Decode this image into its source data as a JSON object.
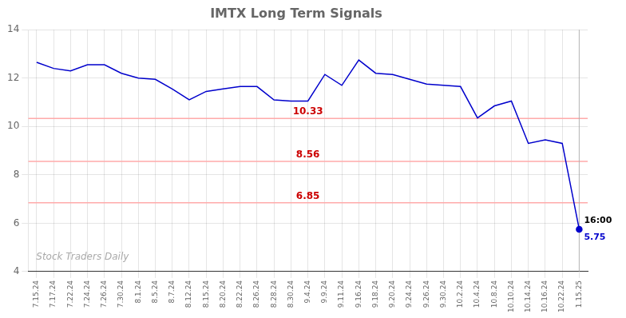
{
  "chart_data": {
    "type": "line",
    "title": "IMTX Long Term Signals",
    "categories": [
      "7.15.24",
      "7.17.24",
      "7.22.24",
      "7.24.24",
      "7.26.24",
      "7.30.24",
      "8.1.24",
      "8.5.24",
      "8.7.24",
      "8.12.24",
      "8.15.24",
      "8.20.24",
      "8.22.24",
      "8.26.24",
      "8.28.24",
      "8.30.24",
      "9.4.24",
      "9.9.24",
      "9.11.24",
      "9.16.24",
      "9.18.24",
      "9.20.24",
      "9.24.24",
      "9.26.24",
      "9.30.24",
      "10.2.24",
      "10.4.24",
      "10.8.24",
      "10.10.24",
      "10.14.24",
      "10.16.24",
      "10.22.24",
      "1.15.25"
    ],
    "values": [
      12.65,
      12.4,
      12.3,
      12.55,
      12.55,
      12.2,
      12.0,
      11.95,
      11.55,
      11.1,
      11.45,
      11.55,
      11.65,
      11.65,
      11.1,
      11.05,
      11.05,
      12.15,
      11.7,
      12.75,
      12.2,
      12.15,
      11.95,
      11.75,
      11.7,
      11.65,
      10.35,
      10.85,
      11.05,
      9.3,
      9.45,
      9.3,
      5.75
    ],
    "color": "#0000cc",
    "ylim": [
      4,
      14
    ],
    "yticks": [
      4,
      6,
      8,
      10,
      12,
      14
    ],
    "grid": true,
    "horizontal_lines": [
      {
        "value": 10.33,
        "label": "10.33",
        "color": "#ffaaaa",
        "label_color": "#cc0000"
      },
      {
        "value": 8.56,
        "label": "8.56",
        "color": "#ffaaaa",
        "label_color": "#cc0000"
      },
      {
        "value": 6.85,
        "label": "6.85",
        "color": "#ffaaaa",
        "label_color": "#cc0000"
      }
    ],
    "annotations": [
      {
        "text": "16:00",
        "x": "1.15.25",
        "y": 5.75,
        "color": "#000000"
      },
      {
        "text": "5.75",
        "x": "1.15.25",
        "y": 5.75,
        "color": "#0000cc"
      },
      {
        "text": "Stock Traders Daily",
        "color": "#aaaaaa"
      }
    ]
  }
}
